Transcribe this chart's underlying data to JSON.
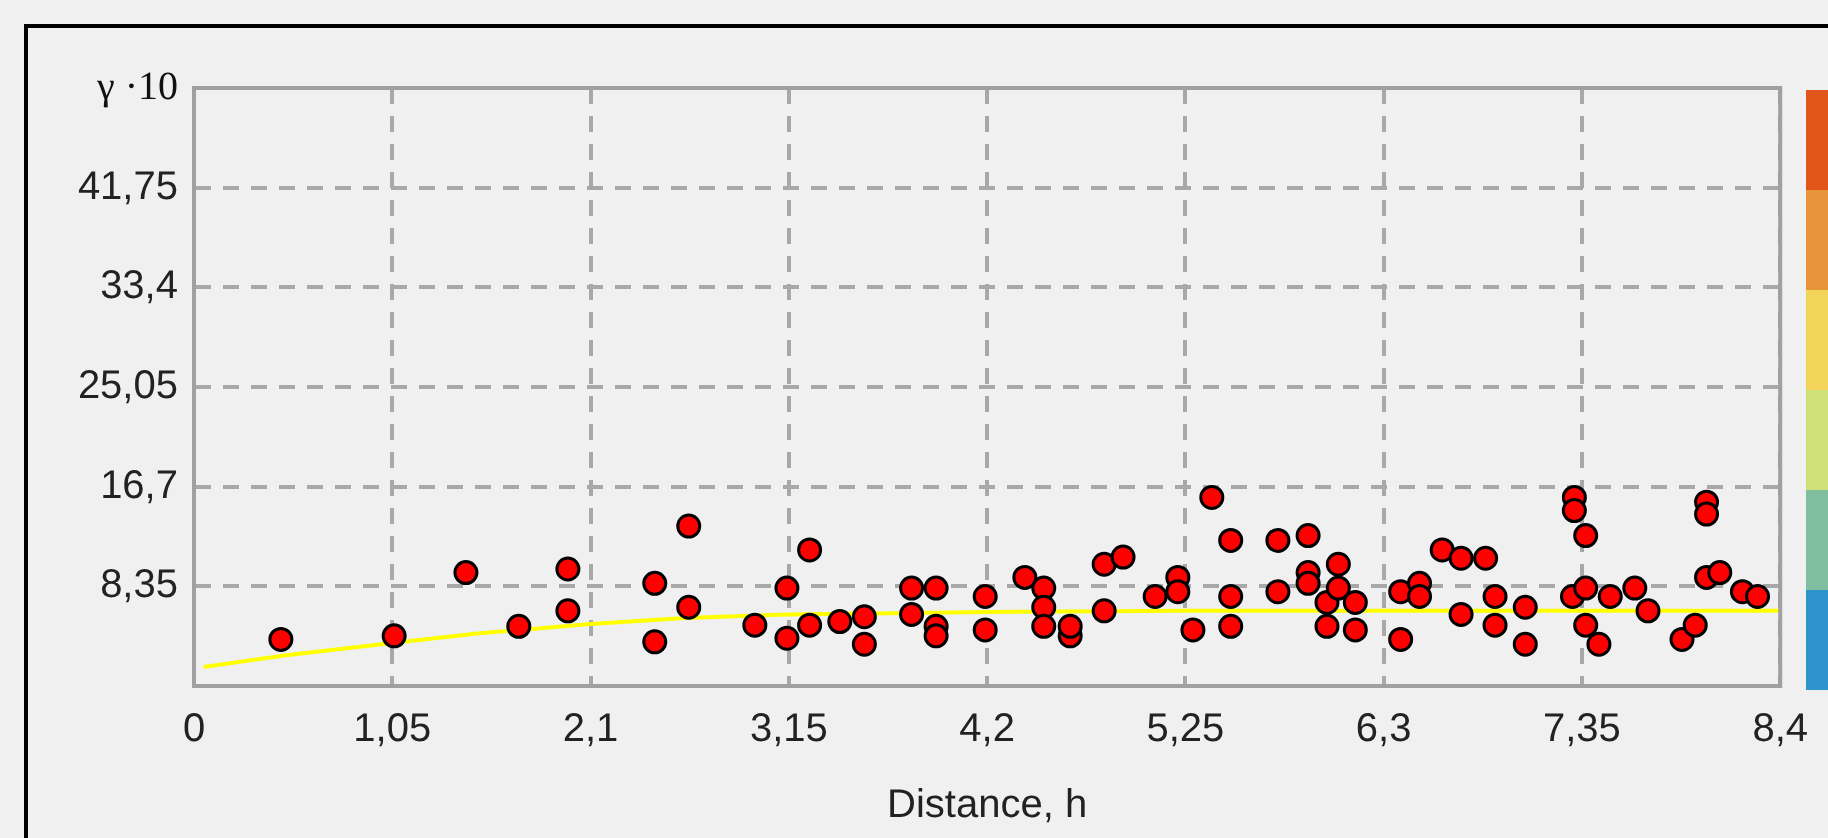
{
  "chart_data": {
    "type": "scatter",
    "xlabel": "Distance, h",
    "ylabel": "γ ·10",
    "xlim": [
      0,
      8.4
    ],
    "ylim": [
      0,
      50.1
    ],
    "xticks": [
      {
        "value": 0,
        "label": "0"
      },
      {
        "value": 1.05,
        "label": "1,05"
      },
      {
        "value": 2.1,
        "label": "2,1"
      },
      {
        "value": 3.15,
        "label": "3,15"
      },
      {
        "value": 4.2,
        "label": "4,2"
      },
      {
        "value": 5.25,
        "label": "5,25"
      },
      {
        "value": 6.3,
        "label": "6,3"
      },
      {
        "value": 7.35,
        "label": "7,35"
      },
      {
        "value": 8.4,
        "label": "8,4"
      }
    ],
    "yticks": [
      {
        "value": 0,
        "label": null
      },
      {
        "value": 8.35,
        "label": "8,35"
      },
      {
        "value": 16.7,
        "label": "16,7"
      },
      {
        "value": 25.05,
        "label": "25,05"
      },
      {
        "value": 33.4,
        "label": "33,4"
      },
      {
        "value": 41.75,
        "label": "41,75"
      }
    ],
    "grid": true,
    "legend": false,
    "marker": "circle",
    "series": [
      {
        "type": "scatter",
        "color": "#ff0000",
        "x": [
          0.46,
          1.06,
          1.44,
          1.72,
          1.98,
          1.98,
          2.44,
          2.44,
          2.62,
          2.62,
          2.97,
          3.14,
          3.14,
          3.26,
          3.26,
          3.42,
          3.55,
          3.55,
          3.8,
          3.8,
          3.93,
          3.93,
          3.93,
          4.19,
          4.19,
          4.4,
          4.5,
          4.5,
          4.5,
          4.64,
          4.64,
          4.82,
          4.92,
          4.82,
          5.09,
          5.21,
          5.21,
          5.29,
          5.39,
          5.49,
          5.49,
          5.49,
          5.74,
          5.74,
          5.9,
          5.9,
          5.9,
          6.0,
          6.0,
          6.06,
          6.06,
          6.15,
          6.15,
          6.39,
          6.39,
          6.49,
          6.49,
          6.61,
          6.71,
          6.84,
          6.71,
          6.89,
          6.89,
          7.05,
          7.05,
          7.31,
          7.31,
          7.37,
          7.3,
          7.37,
          7.37,
          7.44,
          7.5,
          7.63,
          7.7,
          7.88,
          7.95,
          8.01,
          8.01,
          8.01,
          8.08,
          8.2,
          8.28
        ],
        "values": [
          3.9,
          4.2,
          9.5,
          5,
          9.8,
          6.3,
          8.6,
          3.7,
          13.4,
          6.6,
          5.1,
          8.2,
          4,
          11.4,
          5.1,
          5.4,
          5.8,
          3.5,
          8.2,
          6,
          8.2,
          5,
          4.2,
          7.5,
          4.7,
          9.1,
          8.2,
          6.6,
          5,
          4.2,
          5,
          10.2,
          10.8,
          6.3,
          7.5,
          9.1,
          7.9,
          4.7,
          15.8,
          12.2,
          7.5,
          5,
          12.2,
          7.9,
          12.6,
          9.5,
          8.6,
          7,
          5,
          10.2,
          8.2,
          7,
          4.7,
          3.9,
          7.9,
          8.6,
          7.5,
          11.4,
          10.7,
          10.7,
          6,
          7.5,
          5.1,
          6.6,
          3.5,
          15.8,
          14.7,
          12.6,
          7.5,
          8.2,
          5.1,
          3.5,
          7.5,
          8.2,
          6.3,
          3.9,
          5.1,
          15.4,
          14.4,
          9.1,
          9.5,
          7.9,
          7.5
        ]
      },
      {
        "type": "line",
        "color": "#ffff00",
        "marker": "none",
        "x": [
          0.05,
          0.5,
          1.05,
          1.5,
          2.1,
          2.6,
          3.15,
          4.2,
          5.25,
          8.4
        ],
        "values": [
          1.6,
          2.6,
          3.6,
          4.4,
          5.2,
          5.7,
          6.0,
          6.2,
          6.3,
          6.3
        ]
      }
    ]
  }
}
